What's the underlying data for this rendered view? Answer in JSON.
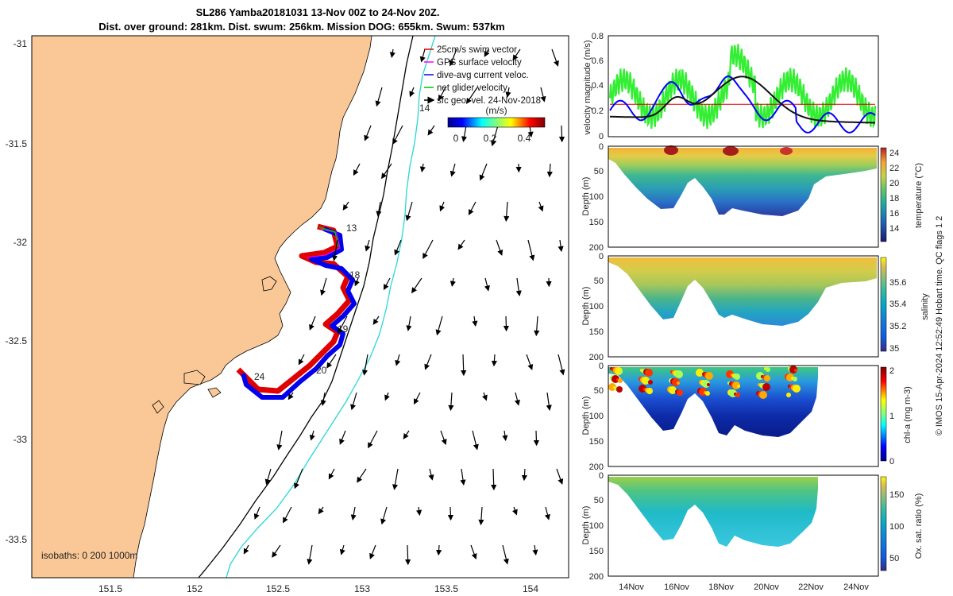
{
  "title": {
    "line1": "SL286 Yamba20181031 13-Nov 00Z to 24-Nov 20Z.",
    "line2": "Dist. over ground: 281km. Dist. swum: 256km. Mission DOG: 655km. Swum: 537km"
  },
  "map": {
    "lon_ticks": [
      "151.5",
      "152",
      "152.5",
      "153",
      "153.5",
      "154"
    ],
    "lat_ticks": [
      "-31",
      "-31.5",
      "-32",
      "-32.5",
      "-33",
      "-33.5"
    ],
    "legend": [
      {
        "label": "25cm/s swim vector",
        "color": "#e00000"
      },
      {
        "label": "GPS surface velocity",
        "color": "#ff00ff"
      },
      {
        "label": "dive-avg current veloc.",
        "color": "#0000ff"
      },
      {
        "label": "net glider velocity",
        "color": "#00c000"
      },
      {
        "label": "sfc geo. vel. 24-Nov-2018",
        "color": "#000000"
      }
    ],
    "colorbar": {
      "title": "(m/s)",
      "ticks": [
        "0",
        "0.2",
        "0.4"
      ]
    },
    "isobath_label": "isobaths: 0  200  1000m",
    "day_labels": [
      "13",
      "14",
      "18",
      "19",
      "20",
      "24"
    ],
    "land_color": "#fac897"
  },
  "panels": {
    "velocity": {
      "ylabel": "velocity magnitude (m/s)",
      "ticks": [
        "0",
        "0.2",
        "0.4",
        "0.6",
        "0.8"
      ]
    },
    "temperature": {
      "ylabel": "Depth (m)",
      "cblabel": "temperature (°C)",
      "depth_ticks": [
        "0",
        "50",
        "100",
        "150",
        "200"
      ],
      "cb_ticks": [
        "24",
        "22",
        "20",
        "18",
        "16",
        "14"
      ]
    },
    "salinity": {
      "ylabel": "Depth (m)",
      "cblabel": "salinity",
      "depth_ticks": [
        "0",
        "50",
        "100",
        "150",
        "200"
      ],
      "cb_ticks": [
        "35.6",
        "35.4",
        "35.2",
        "35"
      ]
    },
    "chla": {
      "ylabel": "Depth (m)",
      "cblabel": "chl-a (mg m-3)",
      "depth_ticks": [
        "0",
        "50",
        "100",
        "150",
        "200"
      ],
      "cb_ticks": [
        "2",
        "1",
        "0"
      ]
    },
    "oxygen": {
      "ylabel": "Depth (m)",
      "cblabel": "Ox. sat. ratio (%)",
      "depth_ticks": [
        "0",
        "50",
        "100",
        "150",
        "200"
      ],
      "cb_ticks": [
        "150",
        "100",
        "50"
      ]
    },
    "time_ticks": [
      "14Nov",
      "16Nov",
      "18Nov",
      "20Nov",
      "22Nov",
      "24Nov"
    ]
  },
  "credit": "© IMOS 15-Apr-2024 12:52:49 Hobart time. QC flags 1  2"
}
